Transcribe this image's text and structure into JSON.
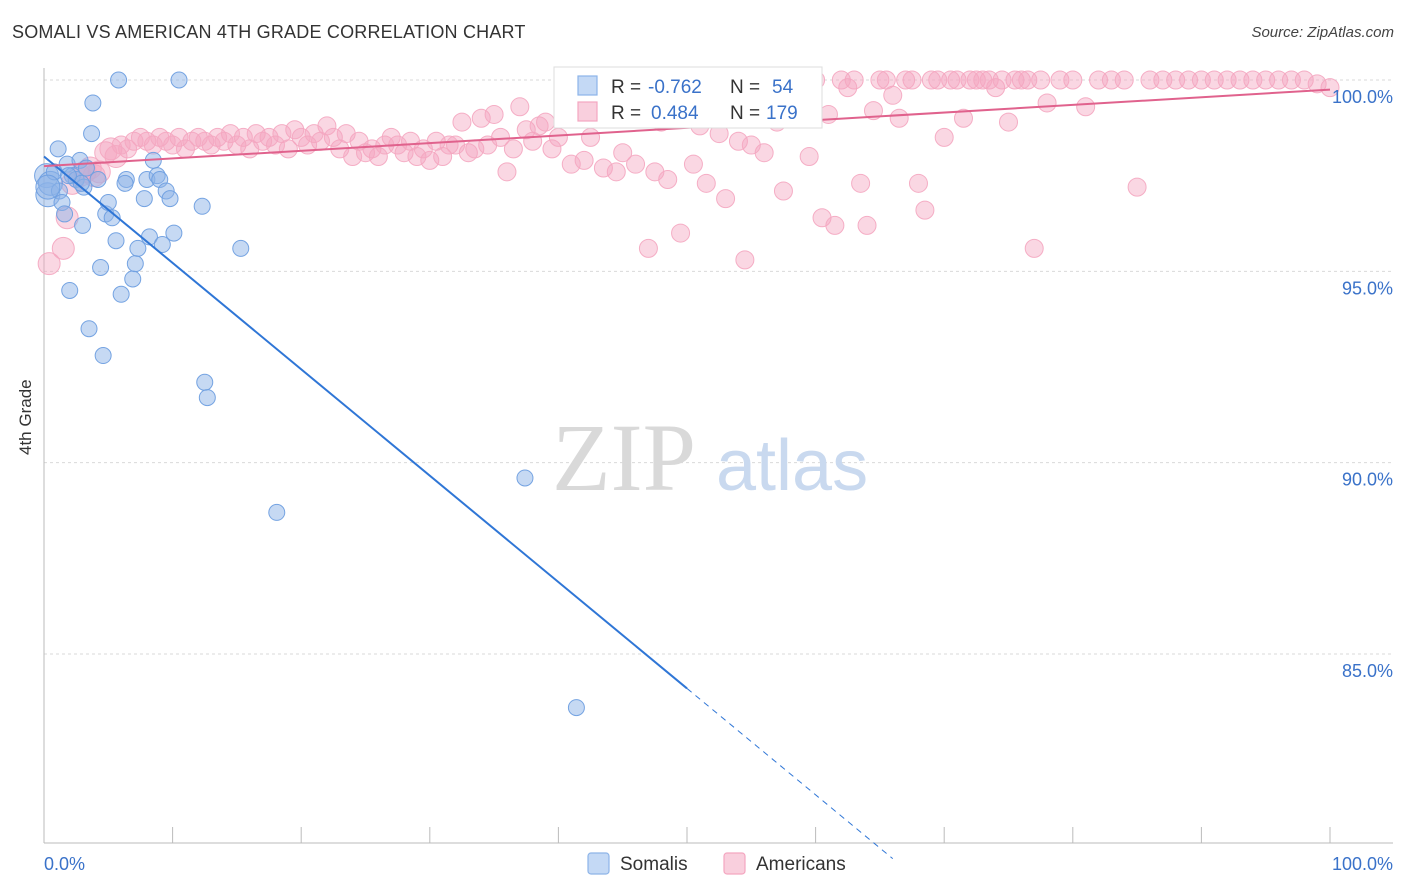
{
  "header": {
    "title": "SOMALI VS AMERICAN 4TH GRADE CORRELATION CHART",
    "source": "Source: ZipAtlas.com"
  },
  "watermark": {
    "part1": "ZIP",
    "part2": "atlas"
  },
  "colors": {
    "somali": "#8db4e8",
    "somali_line": "#2f76d6",
    "american": "#f4a6c0",
    "american_line": "#e0628d",
    "value_text": "#3a72c9",
    "grid": "#d9d9d9"
  },
  "stats": {
    "somali": {
      "r_label": "R =",
      "r_value": "-0.762",
      "n_label": "N =",
      "n_value": "54"
    },
    "american": {
      "r_label": "R =",
      "r_value": "0.484",
      "n_label": "N =",
      "n_value": "179"
    }
  },
  "chart_data": {
    "type": "scatter",
    "title": "SOMALI VS AMERICAN 4TH GRADE CORRELATION CHART",
    "xlabel": "",
    "ylabel": "4th Grade",
    "xlim": [
      0,
      100
    ],
    "ylim": [
      80.5,
      100.3
    ],
    "x_tick_labels": [
      "0.0%",
      "100.0%"
    ],
    "y_ticks": [
      {
        "value": 100,
        "label": "100.0%"
      },
      {
        "value": 95,
        "label": "95.0%"
      },
      {
        "value": 90,
        "label": "90.0%"
      },
      {
        "value": 85,
        "label": "85.0%"
      }
    ],
    "grid": true,
    "legend_position": "bottom-center",
    "series": [
      {
        "name": "Somalis",
        "color": "#8db4e8",
        "trend": {
          "x0": 0,
          "y0": 98.0,
          "x1": 50,
          "y1": 84.1,
          "dash_to_x": 66
        },
        "points": [
          [
            0.2,
            97.5
          ],
          [
            0.3,
            97.0
          ],
          [
            0.5,
            97.3
          ],
          [
            0.8,
            97.6
          ],
          [
            1.1,
            98.2
          ],
          [
            1.2,
            97.1
          ],
          [
            1.4,
            96.8
          ],
          [
            1.6,
            96.5
          ],
          [
            1.8,
            97.8
          ],
          [
            2.0,
            94.5
          ],
          [
            2.2,
            97.5
          ],
          [
            2.5,
            97.4
          ],
          [
            2.8,
            97.9
          ],
          [
            3.0,
            96.2
          ],
          [
            3.1,
            97.2
          ],
          [
            3.3,
            97.7
          ],
          [
            3.5,
            93.5
          ],
          [
            3.7,
            98.6
          ],
          [
            3.8,
            99.4
          ],
          [
            4.2,
            97.4
          ],
          [
            4.4,
            95.1
          ],
          [
            4.6,
            92.8
          ],
          [
            4.8,
            96.5
          ],
          [
            5.0,
            96.8
          ],
          [
            5.3,
            96.4
          ],
          [
            5.6,
            95.8
          ],
          [
            5.8,
            100.0
          ],
          [
            6.0,
            94.4
          ],
          [
            6.4,
            97.4
          ],
          [
            6.9,
            94.8
          ],
          [
            7.1,
            95.2
          ],
          [
            7.3,
            95.6
          ],
          [
            7.8,
            96.9
          ],
          [
            8.0,
            97.4
          ],
          [
            8.2,
            95.9
          ],
          [
            8.5,
            97.9
          ],
          [
            8.8,
            97.5
          ],
          [
            9.0,
            97.4
          ],
          [
            9.2,
            95.7
          ],
          [
            9.5,
            97.1
          ],
          [
            9.8,
            96.9
          ],
          [
            10.1,
            96.0
          ],
          [
            10.5,
            100.0
          ],
          [
            12.3,
            96.7
          ],
          [
            12.5,
            92.1
          ],
          [
            12.7,
            91.7
          ],
          [
            15.3,
            95.6
          ],
          [
            18.1,
            88.7
          ],
          [
            37.4,
            89.6
          ],
          [
            41.4,
            83.6
          ],
          [
            0.3,
            97.2
          ],
          [
            2.9,
            97.3
          ],
          [
            6.3,
            97.3
          ],
          [
            1.9,
            97.5
          ]
        ]
      },
      {
        "name": "Americans",
        "color": "#f4a6c0",
        "trend": {
          "x0": 0,
          "y0": 97.75,
          "x1": 100,
          "y1": 99.75
        },
        "points": [
          [
            0.4,
            95.2
          ],
          [
            1.5,
            95.6
          ],
          [
            1.8,
            96.4
          ],
          [
            2.2,
            97.3
          ],
          [
            2.8,
            97.5
          ],
          [
            3.2,
            97.6
          ],
          [
            3.6,
            97.7
          ],
          [
            3.9,
            97.5
          ],
          [
            4.3,
            97.6
          ],
          [
            4.8,
            98.1
          ],
          [
            5.2,
            98.2
          ],
          [
            5.6,
            98.0
          ],
          [
            6.0,
            98.3
          ],
          [
            6.5,
            98.2
          ],
          [
            7.0,
            98.4
          ],
          [
            7.5,
            98.5
          ],
          [
            8.0,
            98.4
          ],
          [
            8.5,
            98.3
          ],
          [
            9.0,
            98.5
          ],
          [
            9.5,
            98.4
          ],
          [
            10.0,
            98.3
          ],
          [
            10.5,
            98.5
          ],
          [
            11.0,
            98.2
          ],
          [
            11.5,
            98.4
          ],
          [
            12.0,
            98.5
          ],
          [
            12.5,
            98.4
          ],
          [
            13.0,
            98.3
          ],
          [
            13.5,
            98.5
          ],
          [
            14.0,
            98.4
          ],
          [
            14.5,
            98.6
          ],
          [
            15.0,
            98.3
          ],
          [
            15.5,
            98.5
          ],
          [
            16.0,
            98.2
          ],
          [
            16.5,
            98.6
          ],
          [
            17.0,
            98.4
          ],
          [
            17.5,
            98.5
          ],
          [
            18.0,
            98.3
          ],
          [
            18.5,
            98.6
          ],
          [
            19.0,
            98.2
          ],
          [
            19.5,
            98.7
          ],
          [
            20.0,
            98.5
          ],
          [
            20.5,
            98.3
          ],
          [
            21.0,
            98.6
          ],
          [
            21.5,
            98.4
          ],
          [
            22.0,
            98.8
          ],
          [
            22.5,
            98.5
          ],
          [
            23.0,
            98.2
          ],
          [
            23.5,
            98.6
          ],
          [
            24.0,
            98.0
          ],
          [
            24.5,
            98.4
          ],
          [
            25.0,
            98.1
          ],
          [
            25.5,
            98.2
          ],
          [
            26.0,
            98.0
          ],
          [
            26.5,
            98.3
          ],
          [
            27.0,
            98.5
          ],
          [
            27.5,
            98.3
          ],
          [
            28.0,
            98.1
          ],
          [
            28.5,
            98.4
          ],
          [
            29.0,
            98.0
          ],
          [
            29.5,
            98.2
          ],
          [
            30.0,
            97.9
          ],
          [
            30.5,
            98.4
          ],
          [
            31.0,
            98.0
          ],
          [
            31.5,
            98.3
          ],
          [
            32.0,
            98.3
          ],
          [
            32.5,
            98.9
          ],
          [
            33.0,
            98.1
          ],
          [
            33.5,
            98.2
          ],
          [
            34.0,
            99.0
          ],
          [
            34.5,
            98.3
          ],
          [
            35.0,
            99.1
          ],
          [
            35.5,
            98.5
          ],
          [
            36.0,
            97.6
          ],
          [
            36.5,
            98.2
          ],
          [
            37.0,
            99.3
          ],
          [
            37.5,
            98.7
          ],
          [
            38.0,
            98.4
          ],
          [
            38.5,
            98.8
          ],
          [
            39.0,
            98.9
          ],
          [
            39.5,
            98.2
          ],
          [
            40.0,
            98.5
          ],
          [
            40.5,
            99.0
          ],
          [
            41.0,
            97.8
          ],
          [
            41.5,
            99.2
          ],
          [
            42.0,
            97.9
          ],
          [
            42.5,
            98.5
          ],
          [
            43.0,
            99.4
          ],
          [
            43.5,
            97.7
          ],
          [
            44.0,
            99.5
          ],
          [
            44.5,
            97.6
          ],
          [
            45.0,
            98.1
          ],
          [
            45.5,
            99.6
          ],
          [
            46.0,
            97.8
          ],
          [
            46.5,
            99.7
          ],
          [
            47.0,
            95.6
          ],
          [
            47.5,
            97.6
          ],
          [
            48.0,
            98.9
          ],
          [
            48.5,
            97.4
          ],
          [
            49.0,
            99.8
          ],
          [
            49.5,
            96.0
          ],
          [
            50.0,
            99.9
          ],
          [
            50.5,
            97.8
          ],
          [
            51.0,
            98.8
          ],
          [
            51.5,
            97.3
          ],
          [
            52.0,
            100.0
          ],
          [
            52.5,
            98.6
          ],
          [
            53.0,
            96.9
          ],
          [
            53.5,
            99.2
          ],
          [
            54.0,
            98.4
          ],
          [
            54.5,
            95.3
          ],
          [
            55.0,
            98.3
          ],
          [
            55.5,
            99.0
          ],
          [
            56.0,
            98.1
          ],
          [
            56.5,
            100.0
          ],
          [
            57.0,
            98.9
          ],
          [
            57.5,
            97.1
          ],
          [
            58.0,
            99.5
          ],
          [
            58.5,
            100.0
          ],
          [
            59.0,
            99.2
          ],
          [
            59.5,
            98.0
          ],
          [
            60.0,
            100.0
          ],
          [
            60.5,
            96.4
          ],
          [
            61.0,
            99.1
          ],
          [
            61.5,
            96.2
          ],
          [
            62.0,
            100.0
          ],
          [
            62.5,
            99.8
          ],
          [
            63.0,
            100.0
          ],
          [
            63.5,
            97.3
          ],
          [
            64.0,
            96.2
          ],
          [
            64.5,
            99.2
          ],
          [
            65.0,
            100.0
          ],
          [
            65.5,
            100.0
          ],
          [
            66.0,
            99.6
          ],
          [
            66.5,
            99.0
          ],
          [
            67.0,
            100.0
          ],
          [
            67.5,
            100.0
          ],
          [
            68.0,
            97.3
          ],
          [
            68.5,
            96.6
          ],
          [
            69.0,
            100.0
          ],
          [
            69.5,
            100.0
          ],
          [
            70.0,
            98.5
          ],
          [
            70.5,
            100.0
          ],
          [
            71.0,
            100.0
          ],
          [
            71.5,
            99.0
          ],
          [
            72.0,
            100.0
          ],
          [
            72.5,
            100.0
          ],
          [
            73.0,
            100.0
          ],
          [
            73.5,
            100.0
          ],
          [
            74.0,
            99.8
          ],
          [
            74.5,
            100.0
          ],
          [
            75.0,
            98.9
          ],
          [
            75.5,
            100.0
          ],
          [
            76.0,
            100.0
          ],
          [
            76.5,
            100.0
          ],
          [
            77.0,
            95.6
          ],
          [
            77.5,
            100.0
          ],
          [
            78.0,
            99.4
          ],
          [
            79.0,
            100.0
          ],
          [
            80.0,
            100.0
          ],
          [
            81.0,
            99.3
          ],
          [
            82.0,
            100.0
          ],
          [
            83.0,
            100.0
          ],
          [
            84.0,
            100.0
          ],
          [
            85.0,
            97.2
          ],
          [
            86.0,
            100.0
          ],
          [
            87.0,
            100.0
          ],
          [
            89.0,
            100.0
          ],
          [
            91.0,
            100.0
          ],
          [
            93.0,
            100.0
          ],
          [
            96.0,
            100.0
          ],
          [
            98.0,
            100.0
          ],
          [
            100.0,
            99.8
          ],
          [
            92.0,
            100.0
          ],
          [
            88.0,
            100.0
          ],
          [
            90.0,
            100.0
          ],
          [
            94.0,
            100.0
          ],
          [
            95.0,
            100.0
          ],
          [
            97.0,
            100.0
          ],
          [
            99.0,
            99.9
          ]
        ]
      }
    ]
  },
  "legend": {
    "somalis": "Somalis",
    "americans": "Americans"
  }
}
